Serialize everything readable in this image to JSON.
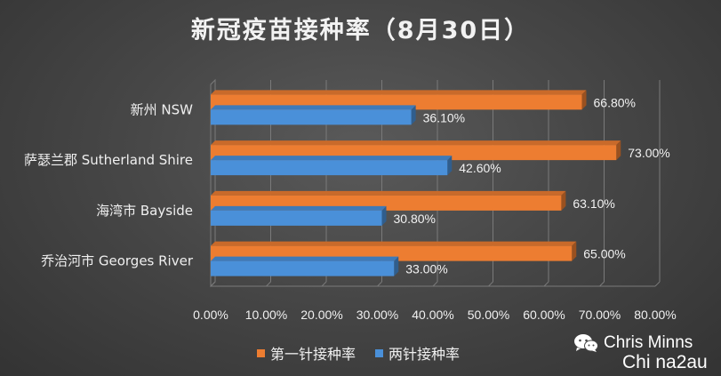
{
  "chart_data": {
    "type": "bar",
    "orientation": "horizontal",
    "title": "新冠疫苗接种率（8月30日）",
    "categories": [
      "新州 NSW",
      "萨瑟兰郡 Sutherland Shire",
      "海湾市 Bayside",
      "乔治河市 Georges River"
    ],
    "series": [
      {
        "name": "第一针接种率",
        "color": "#ed7d31",
        "values": [
          66.8,
          73.0,
          63.1,
          65.0
        ],
        "labels": [
          "66.80%",
          "73.00%",
          "63.10%",
          "65.00%"
        ]
      },
      {
        "name": "两针接种率",
        "color": "#4a90d9",
        "values": [
          36.1,
          42.6,
          30.8,
          33.0
        ],
        "labels": [
          "36.10%",
          "42.60%",
          "30.80%",
          "33.00%"
        ]
      }
    ],
    "xlim": [
      0,
      80
    ],
    "ticks": [
      "0.00%",
      "10.00%",
      "20.00%",
      "30.00%",
      "40.00%",
      "50.00%",
      "60.00%",
      "70.00%",
      "80.00%"
    ],
    "xlabel": "",
    "ylabel": "",
    "legend_position": "bottom",
    "grid": true
  },
  "watermark": {
    "line1": "Chris Minns",
    "line2": "Chi na2au",
    "icon": "wechat-icon"
  }
}
